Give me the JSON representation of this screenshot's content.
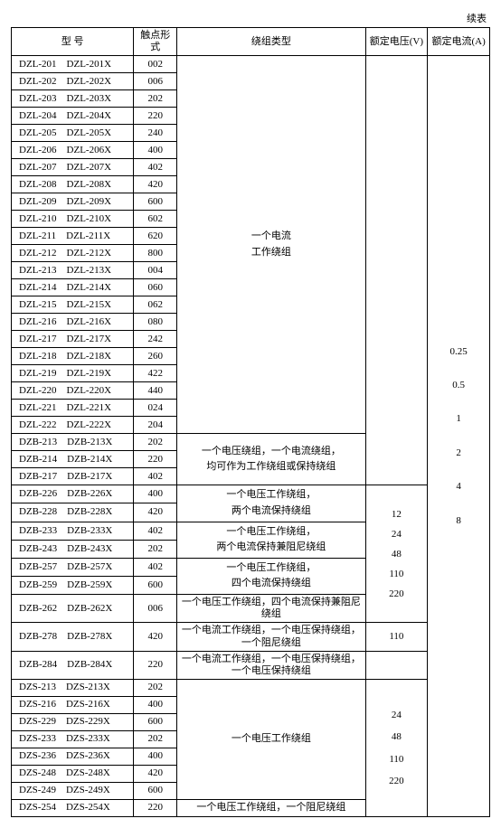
{
  "continued_label": "续表",
  "headers": {
    "model": "型    号",
    "contact": "触点形式",
    "winding": "绕组类型",
    "voltage": "额定电压(V)",
    "current": "额定电流(A)"
  },
  "col_widths": [
    "130",
    "46",
    "200",
    "66",
    "66"
  ],
  "group1_rows": [
    {
      "m": "DZL-201    DZL-201X",
      "c": "002"
    },
    {
      "m": "DZL-202    DZL-202X",
      "c": "006"
    },
    {
      "m": "DZL-203    DZL-203X",
      "c": "202"
    },
    {
      "m": "DZL-204    DZL-204X",
      "c": "220"
    },
    {
      "m": "DZL-205    DZL-205X",
      "c": "240"
    },
    {
      "m": "DZL-206    DZL-206X",
      "c": "400"
    },
    {
      "m": "DZL-207    DZL-207X",
      "c": "402"
    },
    {
      "m": "DZL-208    DZL-208X",
      "c": "420"
    },
    {
      "m": "DZL-209    DZL-209X",
      "c": "600"
    },
    {
      "m": "DZL-210    DZL-210X",
      "c": "602"
    },
    {
      "m": "DZL-211    DZL-211X",
      "c": "620"
    },
    {
      "m": "DZL-212    DZL-212X",
      "c": "800"
    },
    {
      "m": "DZL-213    DZL-213X",
      "c": "004"
    },
    {
      "m": "DZL-214    DZL-214X",
      "c": "060"
    },
    {
      "m": "DZL-215    DZL-215X",
      "c": "062"
    },
    {
      "m": "DZL-216    DZL-216X",
      "c": "080"
    },
    {
      "m": "DZL-217    DZL-217X",
      "c": "242"
    },
    {
      "m": "DZL-218    DZL-218X",
      "c": "260"
    },
    {
      "m": "DZL-219    DZL-219X",
      "c": "422"
    },
    {
      "m": "DZL-220    DZL-220X",
      "c": "440"
    },
    {
      "m": "DZL-221    DZL-221X",
      "c": "024"
    },
    {
      "m": "DZL-222    DZL-222X",
      "c": "204"
    }
  ],
  "group1_winding_lines": [
    "一个电流",
    "工作绕组"
  ],
  "group2_rows": [
    {
      "m": "DZB-213    DZB-213X",
      "c": "202"
    },
    {
      "m": "DZB-214    DZB-214X",
      "c": "220"
    },
    {
      "m": "DZB-217    DZB-217X",
      "c": "402"
    }
  ],
  "group2_winding_lines": [
    "一个电压绕组，一个电流绕组，",
    "均可作为工作绕组或保持绕组"
  ],
  "group3_rows": [
    {
      "m": "DZB-226    DZB-226X",
      "c": "400"
    },
    {
      "m": "DZB-228    DZB-228X",
      "c": "420"
    }
  ],
  "group3_winding_lines": [
    "一个电压工作绕组，",
    "两个电流保持绕组"
  ],
  "group4_rows": [
    {
      "m": "DZB-233    DZB-233X",
      "c": "402"
    },
    {
      "m": "DZB-243    DZB-243X",
      "c": "202"
    }
  ],
  "group4_winding_lines": [
    "一个电压工作绕组，",
    "两个电流保持兼阻尼绕组"
  ],
  "group5_rows": [
    {
      "m": "DZB-257    DZB-257X",
      "c": "402"
    },
    {
      "m": "DZB-259    DZB-259X",
      "c": "600"
    }
  ],
  "group5_winding_lines": [
    "一个电压工作绕组，",
    "四个电流保持绕组"
  ],
  "voltage_block1_lines": [
    "12",
    "24",
    "48",
    "110",
    "220"
  ],
  "row262": {
    "m": "DZB-262    DZB-262X",
    "c": "006",
    "w": "一个电压工作绕组，四个电流保持兼阻尼绕组"
  },
  "row278": {
    "m": "DZB-278    DZB-278X",
    "c": "420",
    "w": "一个电流工作绕组，一个电压保持绕组，一个阻尼绕组",
    "v": "110"
  },
  "row284": {
    "m": "DZB-284    DZB-284X",
    "c": "220",
    "w": "一个电流工作绕组，一个电压保持绕组，一个电压保持绕组"
  },
  "group6_rows": [
    {
      "m": "DZS-213    DZS-213X",
      "c": "202"
    },
    {
      "m": "DZS-216    DZS-216X",
      "c": "400"
    },
    {
      "m": "DZS-229    DZS-229X",
      "c": "600"
    },
    {
      "m": "DZS-233    DZS-233X",
      "c": "202"
    },
    {
      "m": "DZS-236    DZS-236X",
      "c": "400"
    },
    {
      "m": "DZS-248    DZS-248X",
      "c": "420"
    },
    {
      "m": "DZS-249    DZS-249X",
      "c": "600"
    }
  ],
  "group6_winding": "一个电压工作绕组",
  "voltage_block2_lines": [
    "24",
    "48",
    "110",
    "220"
  ],
  "row254": {
    "m": "DZS-254    DZS-254X",
    "c": "220",
    "w": "一个电压工作绕组，一个阻尼绕组"
  },
  "current_values": [
    "0.25",
    "0.5",
    "1",
    "2",
    "4",
    "8"
  ]
}
